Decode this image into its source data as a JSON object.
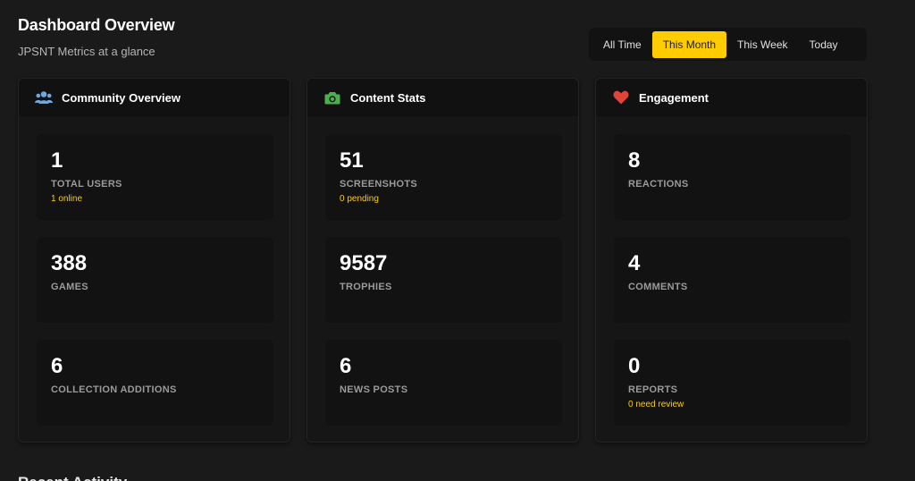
{
  "header": {
    "title": "Dashboard Overview",
    "subtitle": "JPSNT Metrics at a glance"
  },
  "filters": [
    {
      "label": "All Time",
      "active": false
    },
    {
      "label": "This Month",
      "active": true
    },
    {
      "label": "This Week",
      "active": false
    },
    {
      "label": "Today",
      "active": false
    }
  ],
  "colors": {
    "accent": "#ffcc00",
    "users_icon": "#6fa8dc",
    "camera_icon": "#4caf50",
    "heart_icon": "#e0443a"
  },
  "cards": [
    {
      "title": "Community Overview",
      "icon": "users-icon",
      "stats": [
        {
          "value": "1",
          "label": "TOTAL USERS",
          "sub": "1 online"
        },
        {
          "value": "388",
          "label": "GAMES",
          "sub": ""
        },
        {
          "value": "6",
          "label": "COLLECTION ADDITIONS",
          "sub": ""
        }
      ]
    },
    {
      "title": "Content Stats",
      "icon": "camera-icon",
      "stats": [
        {
          "value": "51",
          "label": "SCREENSHOTS",
          "sub": "0 pending"
        },
        {
          "value": "9587",
          "label": "TROPHIES",
          "sub": ""
        },
        {
          "value": "6",
          "label": "NEWS POSTS",
          "sub": ""
        }
      ]
    },
    {
      "title": "Engagement",
      "icon": "heart-icon",
      "stats": [
        {
          "value": "8",
          "label": "REACTIONS",
          "sub": ""
        },
        {
          "value": "4",
          "label": "COMMENTS",
          "sub": ""
        },
        {
          "value": "0",
          "label": "REPORTS",
          "sub": "0 need review"
        }
      ]
    }
  ],
  "next_section": {
    "title": "Recent Activity"
  }
}
